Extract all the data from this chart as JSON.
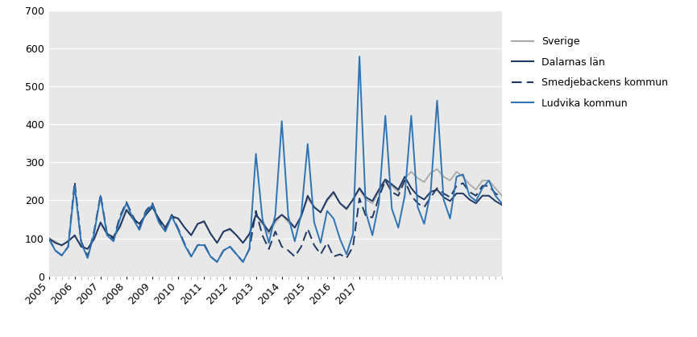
{
  "ylim": [
    0,
    700
  ],
  "yticks": [
    0,
    100,
    200,
    300,
    400,
    500,
    600,
    700
  ],
  "bg_color": "#e8e8e8",
  "sverige": [
    100,
    92,
    80,
    95,
    105,
    80,
    72,
    98,
    138,
    112,
    105,
    128,
    172,
    152,
    138,
    162,
    182,
    152,
    128,
    158,
    152,
    128,
    108,
    138,
    142,
    112,
    88,
    118,
    122,
    108,
    88,
    108,
    162,
    138,
    112,
    142,
    162,
    142,
    128,
    158,
    205,
    182,
    168,
    198,
    218,
    192,
    175,
    202,
    228,
    202,
    192,
    222,
    252,
    238,
    222,
    258,
    275,
    258,
    248,
    272,
    282,
    262,
    252,
    275,
    262,
    242,
    228,
    252,
    252,
    232,
    212
  ],
  "dalarnas": [
    100,
    88,
    82,
    92,
    108,
    78,
    72,
    98,
    142,
    112,
    102,
    132,
    175,
    152,
    138,
    162,
    182,
    152,
    128,
    158,
    152,
    128,
    108,
    138,
    145,
    112,
    88,
    118,
    125,
    108,
    88,
    112,
    162,
    142,
    118,
    148,
    162,
    148,
    128,
    158,
    212,
    182,
    168,
    202,
    222,
    192,
    178,
    202,
    232,
    208,
    198,
    228,
    255,
    242,
    228,
    262,
    232,
    212,
    202,
    222,
    228,
    208,
    198,
    218,
    218,
    202,
    192,
    212,
    212,
    198,
    188
  ],
  "smedjebacken": [
    100,
    68,
    55,
    78,
    248,
    92,
    52,
    118,
    215,
    112,
    98,
    158,
    195,
    158,
    128,
    172,
    192,
    148,
    122,
    162,
    125,
    85,
    52,
    82,
    85,
    52,
    38,
    68,
    78,
    58,
    38,
    72,
    172,
    108,
    72,
    118,
    78,
    68,
    52,
    78,
    125,
    82,
    58,
    88,
    52,
    58,
    48,
    78,
    205,
    158,
    155,
    208,
    252,
    222,
    212,
    252,
    212,
    192,
    182,
    208,
    232,
    218,
    208,
    238,
    245,
    222,
    212,
    238,
    238,
    218,
    208
  ],
  "ludvika": [
    100,
    68,
    55,
    78,
    238,
    88,
    48,
    112,
    212,
    108,
    92,
    152,
    192,
    152,
    122,
    168,
    188,
    142,
    118,
    158,
    122,
    82,
    52,
    82,
    82,
    52,
    38,
    68,
    78,
    58,
    38,
    72,
    322,
    152,
    88,
    162,
    408,
    158,
    92,
    162,
    348,
    142,
    88,
    172,
    152,
    98,
    58,
    112,
    578,
    168,
    108,
    192,
    422,
    178,
    128,
    212,
    422,
    182,
    138,
    222,
    462,
    202,
    152,
    262,
    268,
    212,
    198,
    232,
    252,
    212,
    192
  ],
  "tick_years": [
    2005,
    2006,
    2007,
    2008,
    2009,
    2010,
    2011,
    2012,
    2013,
    2014,
    2015,
    2016,
    2017
  ],
  "x_start_year": 2005,
  "legend_labels": [
    "Sverige",
    "Dalarnas län",
    "Smedjebackens kommun",
    "Ludvika kommun"
  ]
}
